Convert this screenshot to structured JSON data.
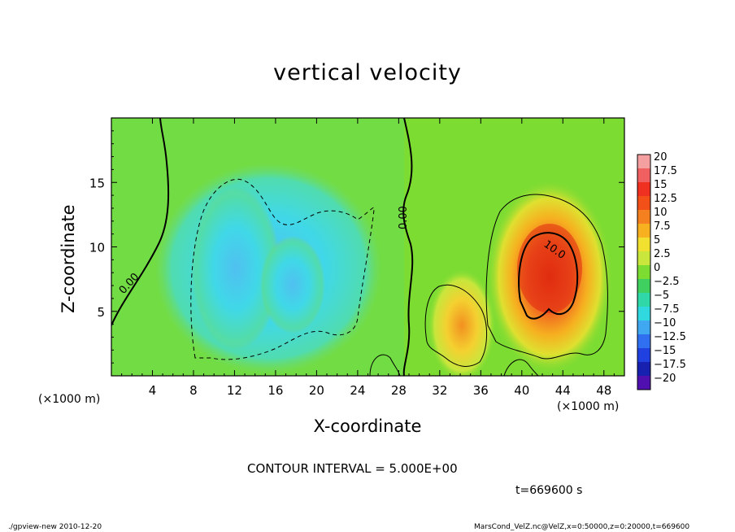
{
  "title": "vertical velocity",
  "footer": {
    "left": "./gpview-new  2010-12-20",
    "right": "MarsCond_VelZ.nc@VelZ,x=0:50000,z=0:20000,t=669600"
  },
  "annotations": {
    "contour_interval": "CONTOUR INTERVAL = 5.000E+00",
    "time": "t=669600 s"
  },
  "chart_data": {
    "type": "heatmap",
    "title": "vertical velocity",
    "xlabel": "X-coordinate",
    "ylabel": "Z-coordinate",
    "x_unit": "(×1000 m)",
    "y_unit": "(×1000 m)",
    "xlim": [
      0,
      50
    ],
    "ylim": [
      0,
      20
    ],
    "x_ticks": [
      4,
      8,
      12,
      16,
      20,
      24,
      28,
      32,
      36,
      40,
      44,
      48
    ],
    "y_ticks": [
      5,
      10,
      15
    ],
    "contour_interval": 5.0,
    "contour_labels": [
      "0.00",
      "0.00",
      "10.0"
    ],
    "colorbar": {
      "levels": [
        "20",
        "17.5",
        "15",
        "12.5",
        "10",
        "7.5",
        "5",
        "2.5",
        "0",
        "−2.5",
        "−5",
        "−7.5",
        "−10",
        "−12.5",
        "−15",
        "−17.5",
        "−20"
      ],
      "colors": [
        "#f4a0a0",
        "#f06060",
        "#f03020",
        "#f25018",
        "#f58020",
        "#f6b020",
        "#f2e030",
        "#c8e63c",
        "#7cdc32",
        "#40d060",
        "#30d8a8",
        "#30d8e0",
        "#40a8f0",
        "#3070f0",
        "#2040e0",
        "#1820b0",
        "#5010b0"
      ]
    },
    "background_value": 0,
    "regions": [
      {
        "kind": "updraft",
        "peak": 12,
        "x_range": [
          38,
          48
        ],
        "z_range": [
          1,
          14
        ]
      },
      {
        "kind": "updraft",
        "peak": 7,
        "x_range": [
          31,
          37
        ],
        "z_range": [
          1,
          7
        ]
      },
      {
        "kind": "downdraft",
        "peak": -8,
        "x_range": [
          8,
          26
        ],
        "z_range": [
          1,
          15
        ]
      }
    ]
  }
}
